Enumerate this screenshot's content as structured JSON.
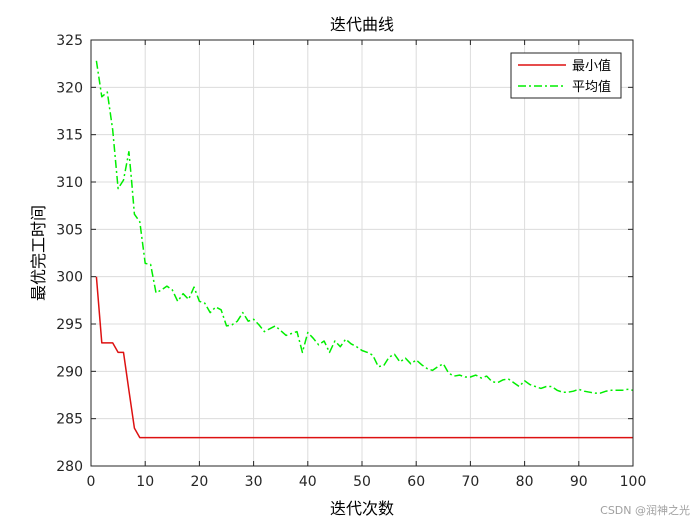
{
  "chart_data": {
    "type": "line",
    "title": "迭代曲线",
    "xlabel": "迭代次数",
    "ylabel": "最优完工时间",
    "xlim": [
      0,
      100
    ],
    "ylim": [
      280,
      325
    ],
    "xticks": [
      0,
      10,
      20,
      30,
      40,
      50,
      60,
      70,
      80,
      90,
      100
    ],
    "yticks": [
      280,
      285,
      290,
      295,
      300,
      305,
      310,
      315,
      320,
      325
    ],
    "grid": true,
    "legend_position": "top-right",
    "series": [
      {
        "name": "最小值",
        "color": "#dd1111",
        "style": "solid",
        "x": [
          1,
          2,
          3,
          4,
          5,
          6,
          7,
          8,
          9,
          10,
          15,
          20,
          30,
          40,
          50,
          60,
          70,
          80,
          90,
          100
        ],
        "y": [
          300,
          293,
          293,
          293,
          292,
          292,
          288,
          284,
          283,
          283,
          283,
          283,
          283,
          283,
          283,
          283,
          283,
          283,
          283,
          283
        ]
      },
      {
        "name": "平均值",
        "color": "#00ee00",
        "style": "dashdot",
        "x": [
          1,
          2,
          3,
          4,
          5,
          6,
          7,
          7.5,
          8,
          9,
          10,
          11,
          12,
          13,
          14,
          15,
          16,
          17,
          18,
          19,
          20,
          21,
          22,
          23,
          24,
          25,
          26,
          27,
          28,
          29,
          30,
          31,
          32,
          33,
          34,
          35,
          36,
          37,
          38,
          39,
          40,
          41,
          42,
          43,
          44,
          45,
          46,
          47,
          48,
          49,
          50,
          51,
          52,
          53,
          54,
          55,
          56,
          57,
          58,
          59,
          60,
          61,
          62,
          63,
          64,
          65,
          66,
          67,
          68,
          69,
          70,
          71,
          72,
          73,
          74,
          75,
          76,
          77,
          78,
          79,
          80,
          81,
          82,
          83,
          84,
          85,
          86,
          87,
          88,
          89,
          90,
          91,
          92,
          93,
          94,
          95,
          96,
          97,
          98,
          99,
          100
        ],
        "y": [
          322.8,
          319.0,
          319.5,
          315.5,
          309.3,
          310.2,
          313.2,
          310.0,
          306.6,
          305.8,
          301.4,
          301.3,
          298.3,
          298.6,
          299.0,
          298.6,
          297.4,
          298.2,
          297.6,
          298.9,
          297.4,
          297.2,
          296.2,
          296.8,
          296.5,
          294.8,
          294.9,
          295.3,
          296.2,
          295.3,
          295.5,
          294.9,
          294.2,
          294.5,
          294.8,
          294.3,
          293.8,
          294.0,
          294.2,
          292.0,
          294.1,
          293.5,
          292.8,
          293.2,
          292.0,
          293.2,
          292.6,
          293.4,
          292.9,
          292.6,
          292.2,
          292.0,
          291.7,
          290.5,
          290.6,
          291.5,
          291.8,
          291.0,
          291.4,
          290.8,
          291.2,
          290.7,
          290.3,
          290.1,
          290.5,
          290.8,
          289.8,
          289.5,
          289.6,
          289.4,
          289.4,
          289.6,
          289.3,
          289.5,
          288.9,
          288.8,
          289.1,
          289.2,
          288.8,
          288.4,
          289.0,
          288.6,
          288.4,
          288.2,
          288.4,
          288.4,
          288.0,
          287.8,
          287.8,
          287.9,
          288.1,
          287.9,
          287.8,
          287.7,
          287.7,
          287.9,
          288.0,
          288.0,
          288.0,
          288.1,
          288.0
        ]
      }
    ]
  },
  "watermark": "CSDN @润神之光"
}
